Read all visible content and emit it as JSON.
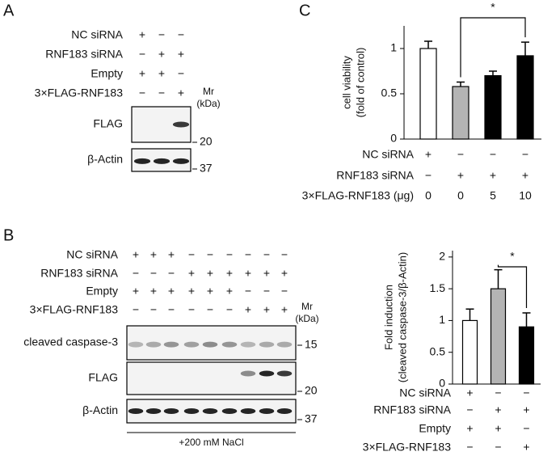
{
  "panel_labels": {
    "a": "A",
    "b": "B",
    "c": "C"
  },
  "blot_a": {
    "conditions": [
      {
        "label": "NC siRNA",
        "marks": [
          "+",
          "−",
          "−"
        ]
      },
      {
        "label": "RNF183 siRNA",
        "marks": [
          "−",
          "+",
          "+"
        ]
      },
      {
        "label": "Empty",
        "marks": [
          "+",
          "+",
          "−"
        ]
      },
      {
        "label": "3×FLAG-RNF183",
        "marks": [
          "−",
          "−",
          "+"
        ]
      }
    ],
    "mr": [
      "Mr",
      "(kDa)"
    ],
    "blots": [
      {
        "label": "FLAG",
        "marker": 20
      },
      {
        "label": "β-Actin",
        "marker": 37
      }
    ]
  },
  "blot_b": {
    "conditions": [
      {
        "label": "NC siRNA",
        "marks": [
          "+",
          "+",
          "+",
          "−",
          "−",
          "−",
          "−",
          "−",
          "−"
        ]
      },
      {
        "label": "RNF183 siRNA",
        "marks": [
          "−",
          "−",
          "−",
          "+",
          "+",
          "+",
          "+",
          "+",
          "+"
        ]
      },
      {
        "label": "Empty",
        "marks": [
          "+",
          "+",
          "+",
          "+",
          "+",
          "+",
          "−",
          "−",
          "−"
        ]
      },
      {
        "label": "3×FLAG-RNF183",
        "marks": [
          "−",
          "−",
          "−",
          "−",
          "−",
          "−",
          "+",
          "+",
          "+"
        ]
      }
    ],
    "mr": [
      "Mr",
      "(kDa)"
    ],
    "blots": [
      {
        "label": "cleaved caspase-3",
        "marker": 15
      },
      {
        "label": "FLAG",
        "marker": 20
      },
      {
        "label": "β-Actin",
        "marker": 37
      }
    ],
    "treatment": "+200 mM NaCl"
  },
  "chart_data": [
    {
      "type": "bar",
      "ylabel": [
        "cell viability",
        "(fold of control)"
      ],
      "values": [
        1.0,
        0.58,
        0.7,
        0.92
      ],
      "errors": [
        0.08,
        0.05,
        0.05,
        0.15
      ],
      "colors": [
        "#ffffff",
        "#b4b4b4",
        "#000000",
        "#000000"
      ],
      "ylim": [
        0,
        1.25
      ],
      "yticks": [
        0,
        0.5,
        1
      ],
      "conditions": [
        {
          "label": "NC siRNA",
          "marks": [
            "+",
            "−",
            "−",
            "−"
          ]
        },
        {
          "label": "RNF183 siRNA",
          "marks": [
            "−",
            "+",
            "+",
            "+"
          ]
        },
        {
          "label": "3×FLAG-RNF183 (μg)",
          "marks": [
            0,
            0,
            5,
            10
          ]
        }
      ],
      "annotation": "*"
    },
    {
      "type": "bar",
      "ylabel": [
        "Fold induction",
        "(cleaved caspase-3/β-Actin)"
      ],
      "values": [
        1.0,
        1.5,
        0.9
      ],
      "errors": [
        0.18,
        0.3,
        0.22
      ],
      "colors": [
        "#ffffff",
        "#b4b4b4",
        "#000000"
      ],
      "ylim": [
        0,
        2.1
      ],
      "yticks": [
        0,
        0.5,
        1,
        1.5,
        2
      ],
      "conditions": [
        {
          "label": "NC siRNA",
          "marks": [
            "+",
            "−",
            "−"
          ]
        },
        {
          "label": "RNF183 siRNA",
          "marks": [
            "−",
            "+",
            "+"
          ]
        },
        {
          "label": "Empty",
          "marks": [
            "+",
            "+",
            "−"
          ]
        },
        {
          "label": "3×FLAG-RNF183",
          "marks": [
            "−",
            "−",
            "+"
          ]
        }
      ],
      "annotation": "*"
    }
  ]
}
